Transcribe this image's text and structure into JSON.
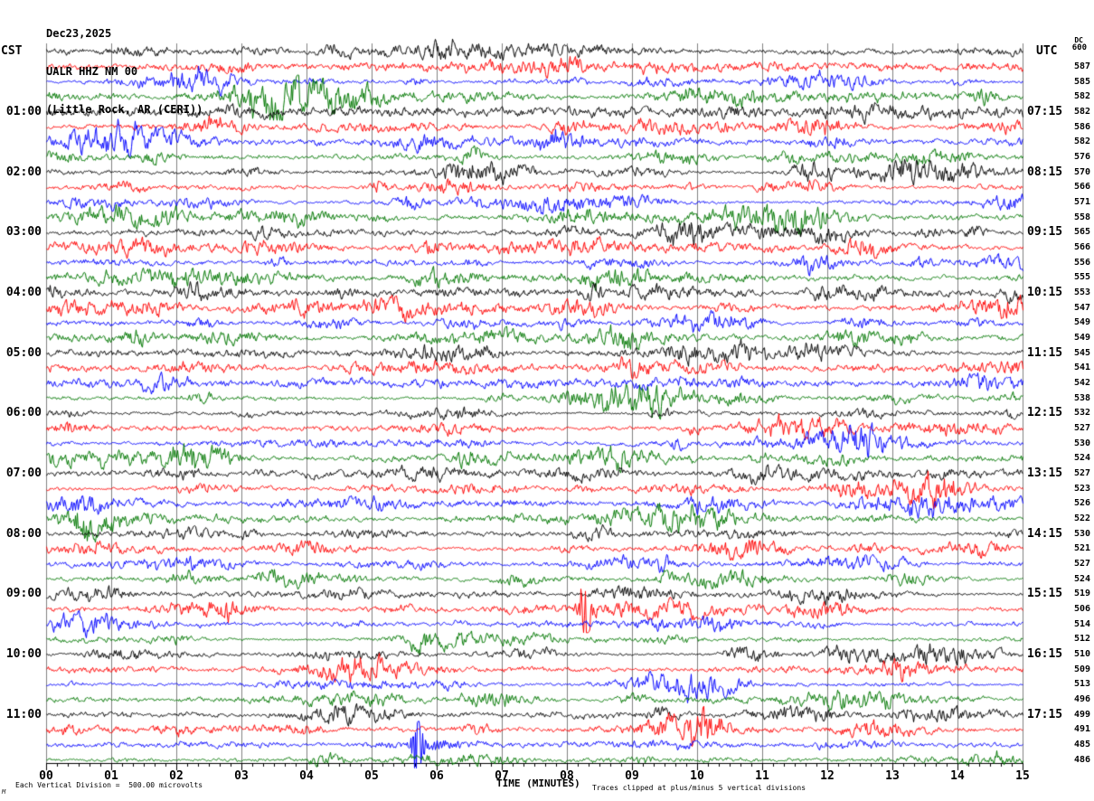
{
  "header": {
    "date": "Dec23,2025",
    "station": "UALR HHZ NM 00",
    "location": "(Little Rock, AR (CERI))"
  },
  "left_axis": {
    "header": "CST"
  },
  "right_axis": {
    "header": "UTC"
  },
  "footer": {
    "scale_note": "Each Vertical Division =  500.00 microvolts",
    "axis_title": "TIME (MINUTES)",
    "clip_note": "Traces clipped at plus/minus 5 vertical divisions",
    "corner_mark": "M"
  },
  "colors": {
    "black": "#000000",
    "red": "#ff0000",
    "blue": "#0000ff",
    "green": "#007700",
    "grid": "#808080",
    "axis": "#000000"
  },
  "chart_data": {
    "type": "line",
    "subtype": "helicorder-seismogram",
    "title": "UALR HHZ NM 00 (Little Rock, AR (CERI)) Dec23,2025",
    "xlabel": "TIME (MINUTES)",
    "x_range": [
      0,
      15
    ],
    "x_tick_labels": [
      "00",
      "01",
      "02",
      "03",
      "04",
      "05",
      "06",
      "07",
      "08",
      "09",
      "10",
      "11",
      "12",
      "13",
      "14",
      "15"
    ],
    "minor_ticks_per_minute": 6,
    "minutes_per_row": 15,
    "rows_per_hour": 4,
    "y_units": "microvolts",
    "microvolts_per_division": 500,
    "clip_divisions": 5,
    "dc_header": "DC",
    "trace_color_cycle": [
      "black",
      "red",
      "blue",
      "green"
    ],
    "rows": [
      {
        "color": "black",
        "cst": "",
        "utc": "",
        "dc": "600"
      },
      {
        "color": "red",
        "cst": "",
        "utc": "",
        "dc": "587"
      },
      {
        "color": "blue",
        "cst": "",
        "utc": "",
        "dc": "585"
      },
      {
        "color": "green",
        "cst": "",
        "utc": "",
        "dc": "582"
      },
      {
        "color": "black",
        "cst": "01:00",
        "utc": "07:15",
        "dc": "582"
      },
      {
        "color": "red",
        "cst": "",
        "utc": "",
        "dc": "586"
      },
      {
        "color": "blue",
        "cst": "",
        "utc": "",
        "dc": "582"
      },
      {
        "color": "green",
        "cst": "",
        "utc": "",
        "dc": "576"
      },
      {
        "color": "black",
        "cst": "02:00",
        "utc": "08:15",
        "dc": "570"
      },
      {
        "color": "red",
        "cst": "",
        "utc": "",
        "dc": "566"
      },
      {
        "color": "blue",
        "cst": "",
        "utc": "",
        "dc": "571"
      },
      {
        "color": "green",
        "cst": "",
        "utc": "",
        "dc": "558"
      },
      {
        "color": "black",
        "cst": "03:00",
        "utc": "09:15",
        "dc": "565"
      },
      {
        "color": "red",
        "cst": "",
        "utc": "",
        "dc": "566"
      },
      {
        "color": "blue",
        "cst": "",
        "utc": "",
        "dc": "556"
      },
      {
        "color": "green",
        "cst": "",
        "utc": "",
        "dc": "555"
      },
      {
        "color": "black",
        "cst": "04:00",
        "utc": "10:15",
        "dc": "553"
      },
      {
        "color": "red",
        "cst": "",
        "utc": "",
        "dc": "547"
      },
      {
        "color": "blue",
        "cst": "",
        "utc": "",
        "dc": "549"
      },
      {
        "color": "green",
        "cst": "",
        "utc": "",
        "dc": "549"
      },
      {
        "color": "black",
        "cst": "05:00",
        "utc": "11:15",
        "dc": "545"
      },
      {
        "color": "red",
        "cst": "",
        "utc": "",
        "dc": "541"
      },
      {
        "color": "blue",
        "cst": "",
        "utc": "",
        "dc": "542"
      },
      {
        "color": "green",
        "cst": "",
        "utc": "",
        "dc": "538"
      },
      {
        "color": "black",
        "cst": "06:00",
        "utc": "12:15",
        "dc": "532"
      },
      {
        "color": "red",
        "cst": "",
        "utc": "",
        "dc": "527"
      },
      {
        "color": "blue",
        "cst": "",
        "utc": "",
        "dc": "530"
      },
      {
        "color": "green",
        "cst": "",
        "utc": "",
        "dc": "524"
      },
      {
        "color": "black",
        "cst": "07:00",
        "utc": "13:15",
        "dc": "527"
      },
      {
        "color": "red",
        "cst": "",
        "utc": "",
        "dc": "523"
      },
      {
        "color": "blue",
        "cst": "",
        "utc": "",
        "dc": "526"
      },
      {
        "color": "green",
        "cst": "",
        "utc": "",
        "dc": "522"
      },
      {
        "color": "black",
        "cst": "08:00",
        "utc": "14:15",
        "dc": "530"
      },
      {
        "color": "red",
        "cst": "",
        "utc": "",
        "dc": "521"
      },
      {
        "color": "blue",
        "cst": "",
        "utc": "",
        "dc": "527"
      },
      {
        "color": "green",
        "cst": "",
        "utc": "",
        "dc": "524"
      },
      {
        "color": "black",
        "cst": "09:00",
        "utc": "15:15",
        "dc": "519"
      },
      {
        "color": "red",
        "cst": "",
        "utc": "",
        "dc": "506"
      },
      {
        "color": "blue",
        "cst": "",
        "utc": "",
        "dc": "514"
      },
      {
        "color": "green",
        "cst": "",
        "utc": "",
        "dc": "512"
      },
      {
        "color": "black",
        "cst": "10:00",
        "utc": "16:15",
        "dc": "510"
      },
      {
        "color": "red",
        "cst": "",
        "utc": "",
        "dc": "509"
      },
      {
        "color": "blue",
        "cst": "",
        "utc": "",
        "dc": "513"
      },
      {
        "color": "green",
        "cst": "",
        "utc": "",
        "dc": "496"
      },
      {
        "color": "black",
        "cst": "11:00",
        "utc": "17:15",
        "dc": "499"
      },
      {
        "color": "red",
        "cst": "",
        "utc": "",
        "dc": "491"
      },
      {
        "color": "blue",
        "cst": "",
        "utc": "",
        "dc": "485"
      },
      {
        "color": "green",
        "cst": "",
        "utc": "",
        "dc": "486"
      }
    ],
    "events": [
      {
        "row": 37,
        "minute": 8.25,
        "color": "red",
        "clipped": true
      },
      {
        "row": 46,
        "minute": 5.68,
        "color": "blue",
        "clipped": true
      }
    ]
  }
}
